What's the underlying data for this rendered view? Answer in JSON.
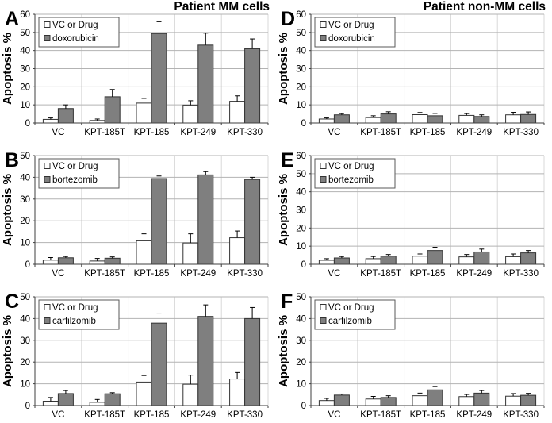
{
  "figure": {
    "left_column_title": "Patient MM cells",
    "right_column_title": "Patient non-MM cells",
    "y_axis_label": "Apoptosis %"
  },
  "colors": {
    "bar_fill_control": "#ffffff",
    "bar_fill_drug": "#7f7f7f",
    "bar_border": "#333333",
    "gridline": "#b3b3b3",
    "category_gridline": "#d9d9d9",
    "axis": "#3f3f3f",
    "error_bar": "#000000",
    "text": "#000000",
    "legend_border": "#595959",
    "background": "#ffffff"
  },
  "chart_data": [
    {
      "panel": "A",
      "type": "bar",
      "title": "Patient MM cells",
      "ylabel": "Apoptosis %",
      "ylim": [
        0,
        60
      ],
      "yticks": [
        0,
        10,
        20,
        30,
        40,
        50,
        60
      ],
      "grid": true,
      "legend_position": "upper-left",
      "categories": [
        "VC",
        "KPT-185T",
        "KPT-185",
        "KPT-249",
        "KPT-330"
      ],
      "series": [
        {
          "name": "VC or Drug",
          "values": [
            2.0,
            1.4,
            11.0,
            9.9,
            12.0
          ],
          "errors": [
            0.8,
            0.8,
            2.6,
            2.4,
            3.0
          ]
        },
        {
          "name": "doxorubicin",
          "values": [
            8.0,
            14.5,
            49.4,
            43.0,
            41.0
          ],
          "errors": [
            2.0,
            4.0,
            6.5,
            6.6,
            5.4
          ]
        }
      ]
    },
    {
      "panel": "D",
      "type": "bar",
      "title": "Patient non-MM cells",
      "ylabel": "Apoptosis %",
      "ylim": [
        0,
        60
      ],
      "yticks": [
        0,
        10,
        20,
        30,
        40,
        50,
        60
      ],
      "grid": true,
      "legend_position": "upper-left",
      "categories": [
        "VC",
        "KPT-185T",
        "KPT-185",
        "KPT-249",
        "KPT-330"
      ],
      "series": [
        {
          "name": "VC or Drug",
          "values": [
            2.2,
            3.0,
            4.6,
            4.2,
            4.5
          ],
          "errors": [
            0.6,
            1.0,
            1.2,
            1.0,
            1.4
          ]
        },
        {
          "name": "doxorubicin",
          "values": [
            4.5,
            5.0,
            4.0,
            3.6,
            4.7
          ],
          "errors": [
            0.7,
            1.2,
            1.3,
            0.9,
            1.4
          ]
        }
      ]
    },
    {
      "panel": "B",
      "type": "bar",
      "title": "",
      "ylabel": "Apoptosis %",
      "ylim": [
        0,
        50
      ],
      "yticks": [
        0,
        10,
        20,
        30,
        40,
        50
      ],
      "grid": true,
      "legend_position": "upper-left",
      "categories": [
        "VC",
        "KPT-185T",
        "KPT-185",
        "KPT-249",
        "KPT-330"
      ],
      "series": [
        {
          "name": "VC or Drug",
          "values": [
            1.9,
            1.5,
            10.8,
            9.8,
            12.2
          ],
          "errors": [
            1.2,
            1.2,
            3.2,
            4.2,
            3.1
          ]
        },
        {
          "name": "bortezomib",
          "values": [
            3.0,
            2.8,
            39.4,
            41.1,
            39.0
          ],
          "errors": [
            0.6,
            0.6,
            1.2,
            1.5,
            1.0
          ]
        }
      ]
    },
    {
      "panel": "E",
      "type": "bar",
      "title": "",
      "ylabel": "Apoptosis %",
      "ylim": [
        0,
        60
      ],
      "yticks": [
        0,
        10,
        20,
        30,
        40,
        50,
        60
      ],
      "grid": true,
      "legend_position": "upper-left",
      "categories": [
        "VC",
        "KPT-185T",
        "KPT-185",
        "KPT-249",
        "KPT-330"
      ],
      "series": [
        {
          "name": "VC or Drug",
          "values": [
            2.2,
            3.1,
            4.5,
            4.1,
            4.2
          ],
          "errors": [
            0.9,
            1.2,
            1.2,
            1.3,
            1.5
          ]
        },
        {
          "name": "bortezomib",
          "values": [
            3.5,
            4.5,
            7.6,
            6.8,
            6.3
          ],
          "errors": [
            0.8,
            0.9,
            1.8,
            1.6,
            1.3
          ]
        }
      ]
    },
    {
      "panel": "C",
      "type": "bar",
      "title": "",
      "ylabel": "Apoptosis %",
      "ylim": [
        0,
        50
      ],
      "yticks": [
        0,
        10,
        20,
        30,
        40,
        50
      ],
      "grid": true,
      "legend_position": "upper-left",
      "categories": [
        "VC",
        "KPT-185T",
        "KPT-185",
        "KPT-249",
        "KPT-330"
      ],
      "series": [
        {
          "name": "VC or Drug",
          "values": [
            2.0,
            1.5,
            10.8,
            9.8,
            12.2
          ],
          "errors": [
            1.7,
            1.3,
            3.0,
            4.2,
            3.0
          ]
        },
        {
          "name": "carfilzomib",
          "values": [
            5.5,
            5.4,
            37.9,
            41.0,
            40.0
          ],
          "errors": [
            1.4,
            0.5,
            4.6,
            5.3,
            5.1
          ]
        }
      ]
    },
    {
      "panel": "F",
      "type": "bar",
      "title": "",
      "ylabel": "Apoptosis %",
      "ylim": [
        0,
        50
      ],
      "yticks": [
        0,
        10,
        20,
        30,
        40,
        50
      ],
      "grid": true,
      "legend_position": "upper-left",
      "categories": [
        "VC",
        "KPT-185T",
        "KPT-185",
        "KPT-249",
        "KPT-330"
      ],
      "series": [
        {
          "name": "VC or Drug",
          "values": [
            2.3,
            3.0,
            4.5,
            4.1,
            4.3
          ],
          "errors": [
            1.0,
            1.2,
            1.2,
            1.0,
            1.2
          ]
        },
        {
          "name": "carfilzomib",
          "values": [
            4.8,
            3.7,
            7.2,
            5.7,
            4.7
          ],
          "errors": [
            0.5,
            0.8,
            1.5,
            1.2,
            0.9
          ]
        }
      ]
    }
  ]
}
